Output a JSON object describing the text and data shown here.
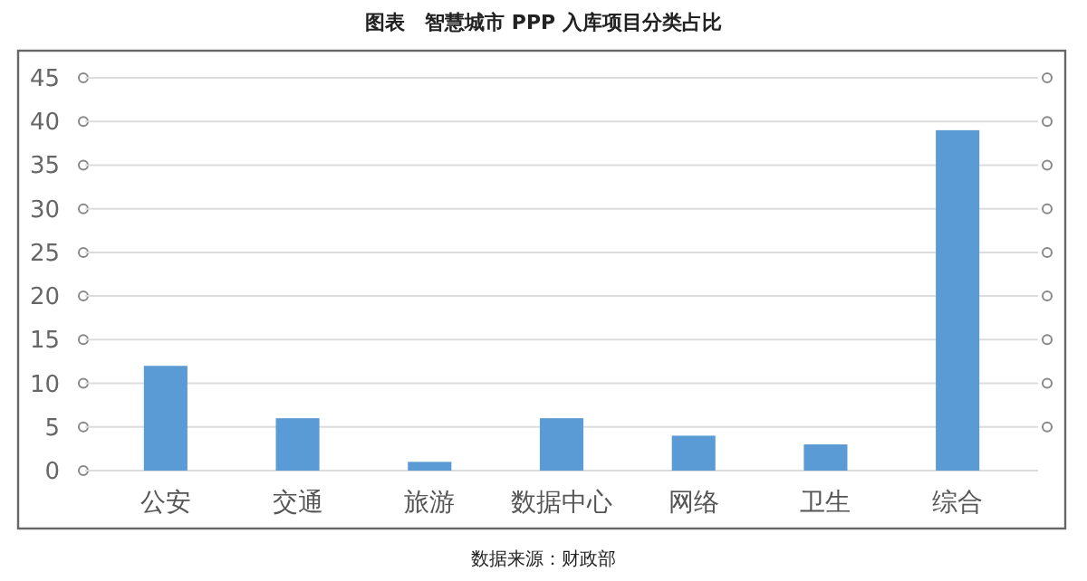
{
  "chart_data": {
    "type": "bar",
    "title": "图表　智慧城市 PPP 入库项目分类占比",
    "categories": [
      "公安",
      "交通",
      "旅游",
      "数据中心",
      "网络",
      "卫生",
      "综合"
    ],
    "values": [
      12,
      6,
      1,
      6,
      4,
      3,
      39
    ],
    "color": "#5b9bd5",
    "ylim": [
      0,
      45
    ],
    "yticks": [
      0,
      5,
      10,
      15,
      20,
      25,
      30,
      35,
      40,
      45
    ],
    "grid": "y",
    "annotations": [
      "数据来源：财政部"
    ]
  }
}
